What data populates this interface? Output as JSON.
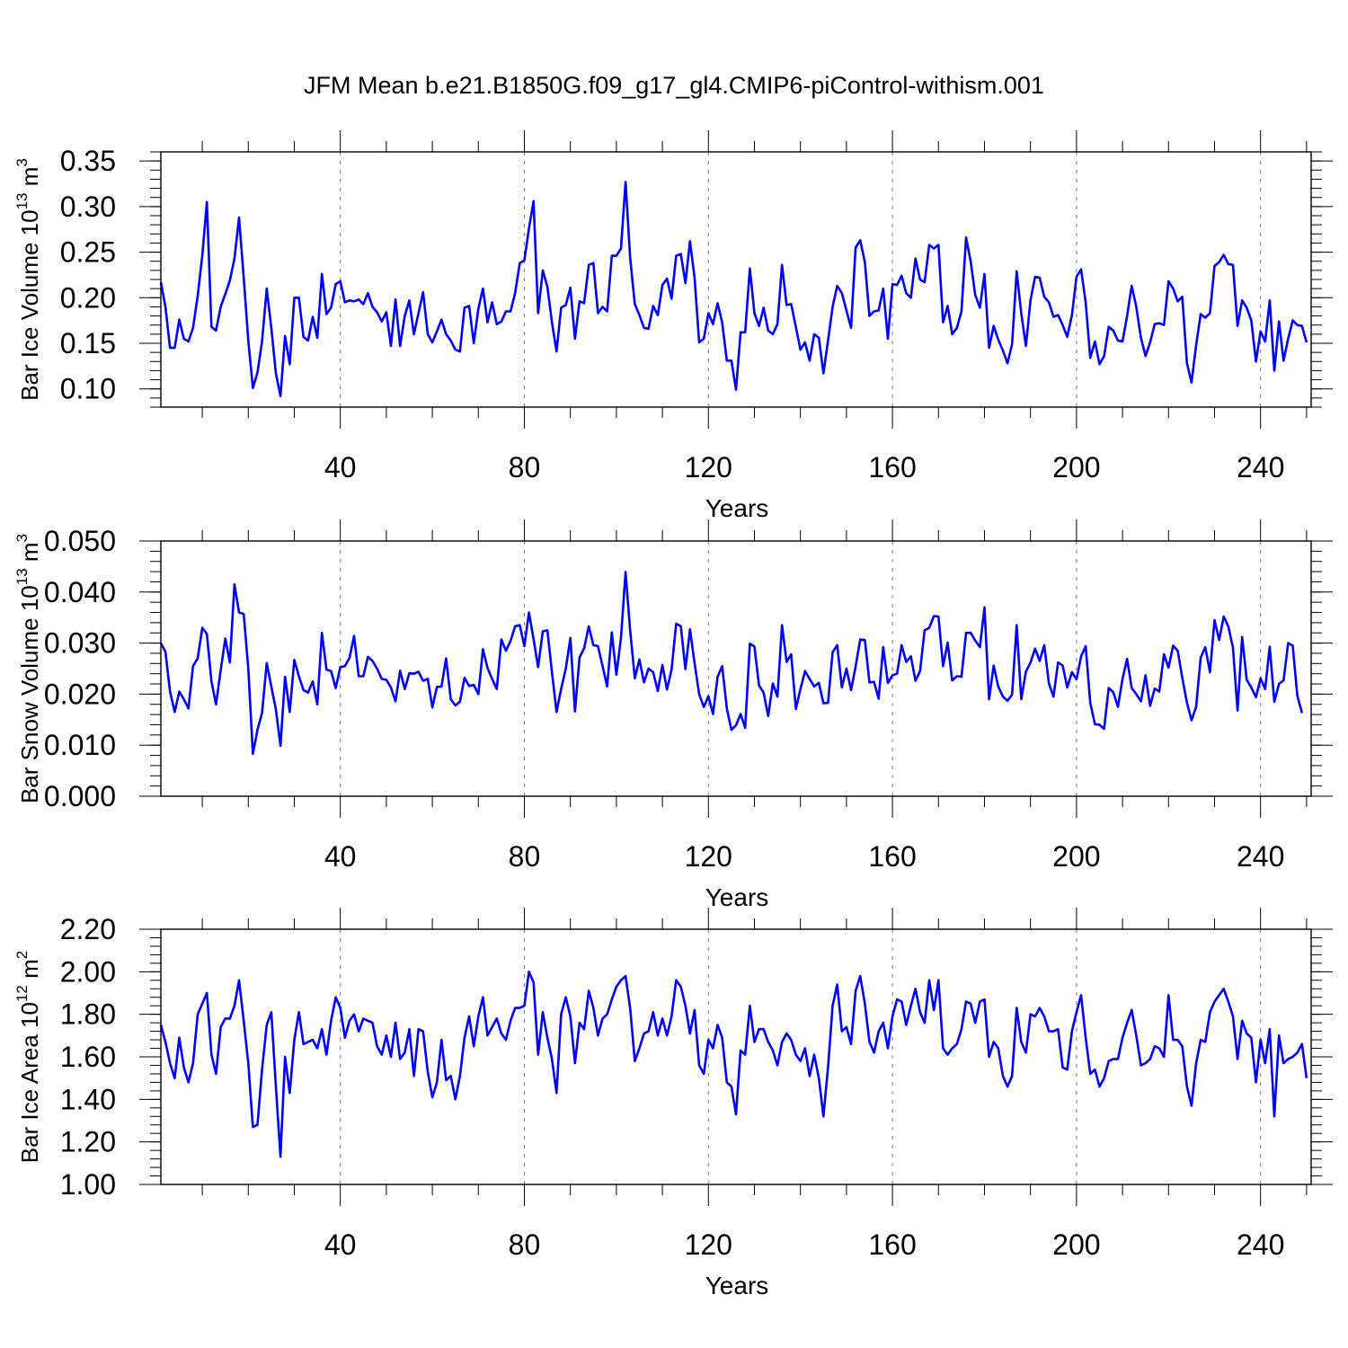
{
  "title": "JFM Mean b.e21.B1850G.f09_g17_gl4.CMIP6-piControl-withism.001",
  "line_color": "#0000ff",
  "chart_data": [
    {
      "type": "line",
      "ylabel": "Bar Ice Volume 10",
      "ylabel_sup": "13",
      "ylabel_unit": " m",
      "ylabel_unit_sup": "3",
      "xlabel": "Years",
      "xlim": [
        1,
        251
      ],
      "ylim": [
        0.08,
        0.36
      ],
      "xticks": [
        40,
        80,
        120,
        160,
        200,
        240
      ],
      "xtick_labels": [
        "40",
        "80",
        "120",
        "160",
        "200",
        "240"
      ],
      "yticks": [
        0.1,
        0.15,
        0.2,
        0.25,
        0.3,
        0.35
      ],
      "ytick_labels": [
        "0.10",
        "0.15",
        "0.20",
        "0.25",
        "0.30",
        "0.35"
      ],
      "grid": "vertical-dashed",
      "series": [
        {
          "x_start": 1,
          "values": [
            0.217,
            0.19,
            0.145,
            0.145,
            0.176,
            0.155,
            0.152,
            0.167,
            0.202,
            0.246,
            0.305,
            0.168,
            0.164,
            0.19,
            0.204,
            0.219,
            0.243,
            0.288,
            0.222,
            0.153,
            0.101,
            0.118,
            0.152,
            0.21,
            0.167,
            0.117,
            0.092,
            0.158,
            0.127,
            0.2,
            0.2,
            0.157,
            0.153,
            0.179,
            0.156,
            0.226,
            0.182,
            0.189,
            0.215,
            0.218,
            0.195,
            0.197,
            0.196,
            0.198,
            0.193,
            0.205,
            0.19,
            0.184,
            0.174,
            0.184,
            0.147,
            0.198,
            0.147,
            0.18,
            0.197,
            0.16,
            0.183,
            0.206,
            0.16,
            0.151,
            0.163,
            0.176,
            0.16,
            0.153,
            0.143,
            0.141,
            0.189,
            0.191,
            0.15,
            0.188,
            0.21,
            0.173,
            0.195,
            0.171,
            0.174,
            0.185,
            0.185,
            0.205,
            0.238,
            0.241,
            0.276,
            0.306,
            0.183,
            0.23,
            0.212,
            0.173,
            0.141,
            0.189,
            0.192,
            0.211,
            0.155,
            0.196,
            0.194,
            0.236,
            0.238,
            0.183,
            0.19,
            0.185,
            0.246,
            0.246,
            0.254,
            0.327,
            0.244,
            0.193,
            0.181,
            0.167,
            0.166,
            0.191,
            0.181,
            0.214,
            0.221,
            0.199,
            0.246,
            0.248,
            0.216,
            0.262,
            0.222,
            0.151,
            0.155,
            0.183,
            0.171,
            0.194,
            0.173,
            0.131,
            0.131,
            0.099,
            0.162,
            0.162,
            0.232,
            0.183,
            0.169,
            0.189,
            0.164,
            0.16,
            0.171,
            0.236,
            0.192,
            0.193,
            0.168,
            0.143,
            0.151,
            0.131,
            0.16,
            0.156,
            0.117,
            0.153,
            0.19,
            0.213,
            0.205,
            0.186,
            0.167,
            0.255,
            0.263,
            0.239,
            0.18,
            0.185,
            0.186,
            0.21,
            0.155,
            0.215,
            0.214,
            0.224,
            0.205,
            0.2,
            0.243,
            0.22,
            0.217,
            0.258,
            0.254,
            0.258,
            0.173,
            0.191,
            0.16,
            0.167,
            0.185,
            0.266,
            0.24,
            0.203,
            0.189,
            0.226,
            0.145,
            0.169,
            0.154,
            0.142,
            0.128,
            0.149,
            0.229,
            0.183,
            0.147,
            0.197,
            0.223,
            0.222,
            0.201,
            0.195,
            0.179,
            0.181,
            0.17,
            0.157,
            0.181,
            0.223,
            0.231,
            0.195,
            0.134,
            0.152,
            0.127,
            0.136,
            0.168,
            0.164,
            0.153,
            0.152,
            0.18,
            0.213,
            0.19,
            0.156,
            0.136,
            0.151,
            0.171,
            0.172,
            0.17,
            0.218,
            0.21,
            0.196,
            0.201,
            0.128,
            0.107,
            0.148,
            0.182,
            0.178,
            0.183,
            0.235,
            0.239,
            0.247,
            0.237,
            0.236,
            0.169,
            0.197,
            0.189,
            0.175,
            0.13,
            0.163,
            0.152,
            0.197,
            0.12,
            0.174,
            0.131,
            0.155,
            0.175,
            0.17,
            0.169,
            0.151
          ]
        }
      ]
    },
    {
      "type": "line",
      "ylabel": "Bar Snow Volume 10",
      "ylabel_sup": "13",
      "ylabel_unit": " m",
      "ylabel_unit_sup": "3",
      "xlabel": "Years",
      "xlim": [
        1,
        251
      ],
      "ylim": [
        0.0,
        0.05
      ],
      "xticks": [
        40,
        80,
        120,
        160,
        200,
        240
      ],
      "xtick_labels": [
        "40",
        "80",
        "120",
        "160",
        "200",
        "240"
      ],
      "yticks": [
        0.0,
        0.01,
        0.02,
        0.03,
        0.04,
        0.05
      ],
      "ytick_labels": [
        "0.000",
        "0.010",
        "0.020",
        "0.030",
        "0.040",
        "0.050"
      ],
      "grid": "vertical-dashed",
      "series": [
        {
          "x_start": 1,
          "values": [
            0.03,
            0.0283,
            0.0205,
            0.0165,
            0.0205,
            0.019,
            0.0172,
            0.0255,
            0.027,
            0.033,
            0.0318,
            0.0225,
            0.018,
            0.0247,
            0.0309,
            0.0262,
            0.0415,
            0.036,
            0.0357,
            0.025,
            0.0083,
            0.013,
            0.0163,
            0.0261,
            0.0215,
            0.017,
            0.0099,
            0.0234,
            0.0165,
            0.0267,
            0.0235,
            0.0208,
            0.0203,
            0.0225,
            0.018,
            0.032,
            0.0248,
            0.0245,
            0.0212,
            0.0253,
            0.0255,
            0.0271,
            0.0314,
            0.0235,
            0.0235,
            0.0273,
            0.0265,
            0.025,
            0.023,
            0.0228,
            0.0213,
            0.0186,
            0.0246,
            0.021,
            0.0241,
            0.024,
            0.0244,
            0.0226,
            0.023,
            0.0174,
            0.0214,
            0.0215,
            0.027,
            0.019,
            0.0178,
            0.0185,
            0.0232,
            0.0216,
            0.0218,
            0.02,
            0.0288,
            0.0251,
            0.023,
            0.021,
            0.0307,
            0.0285,
            0.0304,
            0.0333,
            0.0335,
            0.0294,
            0.036,
            0.0308,
            0.0253,
            0.0323,
            0.0325,
            0.0243,
            0.0165,
            0.021,
            0.025,
            0.031,
            0.0166,
            0.0272,
            0.029,
            0.0333,
            0.0296,
            0.0294,
            0.0255,
            0.0215,
            0.0321,
            0.0238,
            0.031,
            0.0439,
            0.0325,
            0.0231,
            0.0268,
            0.0223,
            0.025,
            0.0243,
            0.0206,
            0.0257,
            0.0209,
            0.0248,
            0.0338,
            0.0333,
            0.0249,
            0.0327,
            0.0261,
            0.02,
            0.0175,
            0.0196,
            0.0161,
            0.0234,
            0.0255,
            0.0172,
            0.013,
            0.0139,
            0.0161,
            0.0134,
            0.0299,
            0.0293,
            0.0217,
            0.0203,
            0.0157,
            0.0221,
            0.0195,
            0.0335,
            0.0263,
            0.0278,
            0.0171,
            0.021,
            0.0245,
            0.023,
            0.0215,
            0.0222,
            0.0182,
            0.0183,
            0.0282,
            0.0296,
            0.0213,
            0.025,
            0.0208,
            0.0254,
            0.0307,
            0.0306,
            0.0223,
            0.0224,
            0.0191,
            0.0292,
            0.0222,
            0.0237,
            0.024,
            0.0296,
            0.0263,
            0.0274,
            0.0226,
            0.0245,
            0.0325,
            0.033,
            0.0353,
            0.0352,
            0.0255,
            0.0301,
            0.0227,
            0.0235,
            0.0234,
            0.032,
            0.032,
            0.0305,
            0.0292,
            0.037,
            0.019,
            0.0256,
            0.0215,
            0.0195,
            0.0187,
            0.0199,
            0.0335,
            0.019,
            0.0244,
            0.0262,
            0.0289,
            0.0265,
            0.0296,
            0.0221,
            0.0195,
            0.0262,
            0.0256,
            0.0213,
            0.0243,
            0.0229,
            0.0274,
            0.0294,
            0.0183,
            0.0141,
            0.014,
            0.0132,
            0.0212,
            0.0204,
            0.0175,
            0.023,
            0.0269,
            0.0212,
            0.02,
            0.0186,
            0.0237,
            0.0177,
            0.0211,
            0.0205,
            0.0278,
            0.0252,
            0.0295,
            0.0285,
            0.0232,
            0.0183,
            0.0149,
            0.0175,
            0.0272,
            0.0292,
            0.0243,
            0.0345,
            0.0306,
            0.0352,
            0.0333,
            0.0291,
            0.0168,
            0.0312,
            0.0228,
            0.0213,
            0.0194,
            0.0231,
            0.021,
            0.0293,
            0.0185,
            0.022,
            0.0227,
            0.03,
            0.0295,
            0.0197,
            0.0163
          ]
        }
      ]
    },
    {
      "type": "line",
      "ylabel": "Bar Ice Area 10",
      "ylabel_sup": "12",
      "ylabel_unit": " m",
      "ylabel_unit_sup": "2",
      "xlabel": "Years",
      "xlim": [
        1,
        251
      ],
      "ylim": [
        1.0,
        2.2
      ],
      "xticks": [
        40,
        80,
        120,
        160,
        200,
        240
      ],
      "xtick_labels": [
        "40",
        "80",
        "120",
        "160",
        "200",
        "240"
      ],
      "yticks": [
        1.0,
        1.2,
        1.4,
        1.6,
        1.8,
        2.0,
        2.2
      ],
      "ytick_labels": [
        "1.00",
        "1.20",
        "1.40",
        "1.60",
        "1.80",
        "2.00",
        "2.20"
      ],
      "grid": "vertical-dashed",
      "series": [
        {
          "x_start": 1,
          "values": [
            1.75,
            1.67,
            1.57,
            1.5,
            1.69,
            1.55,
            1.48,
            1.57,
            1.8,
            1.85,
            1.9,
            1.61,
            1.52,
            1.74,
            1.78,
            1.78,
            1.84,
            1.96,
            1.77,
            1.57,
            1.27,
            1.28,
            1.54,
            1.75,
            1.81,
            1.46,
            1.13,
            1.6,
            1.43,
            1.68,
            1.81,
            1.66,
            1.67,
            1.68,
            1.64,
            1.73,
            1.61,
            1.77,
            1.88,
            1.83,
            1.69,
            1.77,
            1.8,
            1.72,
            1.78,
            1.77,
            1.76,
            1.65,
            1.61,
            1.7,
            1.6,
            1.76,
            1.59,
            1.62,
            1.73,
            1.51,
            1.73,
            1.72,
            1.53,
            1.41,
            1.48,
            1.68,
            1.49,
            1.51,
            1.4,
            1.51,
            1.69,
            1.79,
            1.65,
            1.79,
            1.88,
            1.7,
            1.74,
            1.78,
            1.71,
            1.68,
            1.77,
            1.83,
            1.83,
            1.84,
            2.0,
            1.95,
            1.61,
            1.81,
            1.69,
            1.59,
            1.43,
            1.8,
            1.88,
            1.79,
            1.57,
            1.76,
            1.73,
            1.91,
            1.83,
            1.7,
            1.78,
            1.8,
            1.87,
            1.93,
            1.96,
            1.98,
            1.83,
            1.58,
            1.64,
            1.71,
            1.72,
            1.81,
            1.7,
            1.78,
            1.7,
            1.79,
            1.96,
            1.93,
            1.84,
            1.71,
            1.82,
            1.56,
            1.52,
            1.68,
            1.64,
            1.75,
            1.69,
            1.48,
            1.46,
            1.33,
            1.63,
            1.61,
            1.84,
            1.67,
            1.73,
            1.73,
            1.67,
            1.63,
            1.56,
            1.67,
            1.71,
            1.68,
            1.61,
            1.58,
            1.64,
            1.51,
            1.61,
            1.5,
            1.32,
            1.55,
            1.84,
            1.94,
            1.72,
            1.74,
            1.66,
            1.91,
            1.98,
            1.85,
            1.67,
            1.62,
            1.72,
            1.76,
            1.64,
            1.79,
            1.87,
            1.86,
            1.75,
            1.84,
            1.92,
            1.81,
            1.76,
            1.96,
            1.82,
            1.96,
            1.64,
            1.61,
            1.64,
            1.66,
            1.73,
            1.86,
            1.85,
            1.76,
            1.86,
            1.87,
            1.6,
            1.67,
            1.64,
            1.51,
            1.46,
            1.51,
            1.83,
            1.67,
            1.62,
            1.8,
            1.79,
            1.83,
            1.79,
            1.72,
            1.72,
            1.73,
            1.55,
            1.54,
            1.72,
            1.81,
            1.89,
            1.69,
            1.52,
            1.54,
            1.46,
            1.5,
            1.58,
            1.59,
            1.59,
            1.69,
            1.76,
            1.82,
            1.7,
            1.56,
            1.57,
            1.59,
            1.65,
            1.64,
            1.6,
            1.89,
            1.68,
            1.68,
            1.65,
            1.46,
            1.37,
            1.57,
            1.68,
            1.67,
            1.81,
            1.86,
            1.89,
            1.92,
            1.86,
            1.79,
            1.59,
            1.77,
            1.71,
            1.69,
            1.48,
            1.68,
            1.57,
            1.73,
            1.32,
            1.7,
            1.57,
            1.59,
            1.6,
            1.62,
            1.66,
            1.5
          ]
        }
      ]
    }
  ]
}
